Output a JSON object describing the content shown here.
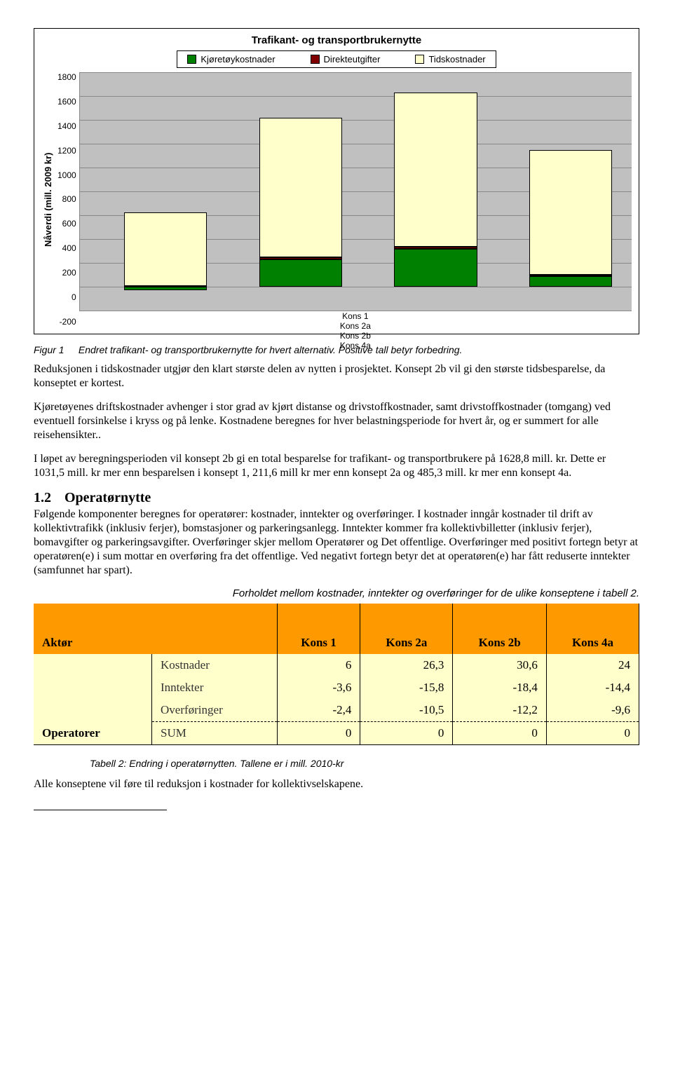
{
  "chart": {
    "title": "Trafikant- og transportbrukernytte",
    "ylabel": "Nåverdi (mill. 2009 kr)",
    "ymin": -200,
    "ymax": 1800,
    "ytick_step": 200,
    "yticks": [
      "1800",
      "1600",
      "1400",
      "1200",
      "1000",
      "800",
      "600",
      "400",
      "200",
      "0",
      "-200"
    ],
    "plot_bg": "#c0c0c0",
    "grid_color": "#888888",
    "legend": [
      {
        "label": "Kjøretøykostnader",
        "color": "#008000"
      },
      {
        "label": "Direkteutgifter",
        "color": "#800000"
      },
      {
        "label": "Tidskostnader",
        "color": "#ffffcc"
      }
    ],
    "categories": [
      "Kons 1",
      "Kons 2a",
      "Kons 2b",
      "Kons 4a"
    ],
    "series": [
      {
        "name": "Kjøretøykostnader",
        "color": "#008000",
        "values": [
          -30,
          230,
          320,
          90
        ]
      },
      {
        "name": "Direkteutgifter",
        "color": "#800000",
        "values": [
          5,
          15,
          15,
          10
        ]
      },
      {
        "name": "Tidskostnader",
        "color": "#ffffcc",
        "values": [
          620,
          1175,
          1295,
          1045
        ]
      }
    ],
    "bar_left_pct": [
      8,
      32.5,
      57,
      81.5
    ],
    "bar_width_pct": 15
  },
  "figure_caption": {
    "label": "Figur 1",
    "text": "Endret trafikant- og transportbrukernytte for hvert alternativ. Positive tall betyr forbedring."
  },
  "para1": "Reduksjonen i tidskostnader utgjør den klart største delen av nytten i prosjektet. Konsept 2b vil gi den største tidsbesparelse, da konseptet er kortest.",
  "para2": "Kjøretøyenes driftskostnader avhenger i stor grad av kjørt distanse og drivstoffkostnader, samt drivstoffkostnader (tomgang) ved eventuell forsinkelse i kryss og på lenke. Kostnadene beregnes for hver belastningsperiode for hvert år, og er summert for alle reisehensikter..",
  "para3": "I løpet av beregningsperioden vil konsept 2b gi en total besparelse for trafikant- og transportbrukere på 1628,8 mill. kr. Dette er 1031,5 mill. kr mer enn besparelsen i konsept 1, 211,6 mill kr mer enn konsept 2a og 485,3 mill. kr mer enn konsept 4a.",
  "section": {
    "num": "1.2",
    "title": "Operatørnytte"
  },
  "para4": "Følgende komponenter beregnes for operatører: kostnader, inntekter og overføringer. I kostnader inngår kostnader til drift av kollektivtrafikk (inklusiv ferjer), bomstasjoner og parkeringsanlegg. Inntekter kommer fra kollektivbilletter (inklusiv ferjer), bomavgifter og parkeringsavgifter. Overføringer skjer mellom Operatører og Det offentlige. Overføringer med positivt fortegn betyr at operatøren(e) i sum mottar en overføring fra det offentlige. Ved negativt fortegn betyr det at operatøren(e) har fått reduserte inntekter (samfunnet har spart).",
  "table_intro": "Forholdet mellom kostnader, inntekter og overføringer for de ulike konseptene i tabell 2.",
  "table": {
    "header_bg": "#ff9900",
    "body_bg": "#ffffcc",
    "columns": [
      "Aktør",
      "",
      "Kons 1",
      "Kons 2a",
      "Kons 2b",
      "Kons 4a"
    ],
    "aktor": "Operatorer",
    "rows": [
      {
        "label": "Kostnader",
        "vals": [
          "6",
          "26,3",
          "30,6",
          "24"
        ]
      },
      {
        "label": "Inntekter",
        "vals": [
          "-3,6",
          "-15,8",
          "-18,4",
          "-14,4"
        ]
      },
      {
        "label": "Overføringer",
        "vals": [
          "-2,4",
          "-10,5",
          "-12,2",
          "-9,6"
        ]
      },
      {
        "label": "SUM",
        "vals": [
          "0",
          "0",
          "0",
          "0"
        ]
      }
    ]
  },
  "table_caption": "Tabell 2: Endring i operatørnytten. Tallene er i mill. 2010-kr",
  "para5": "Alle konseptene vil føre til reduksjon i kostnader for kollektivselskapene."
}
